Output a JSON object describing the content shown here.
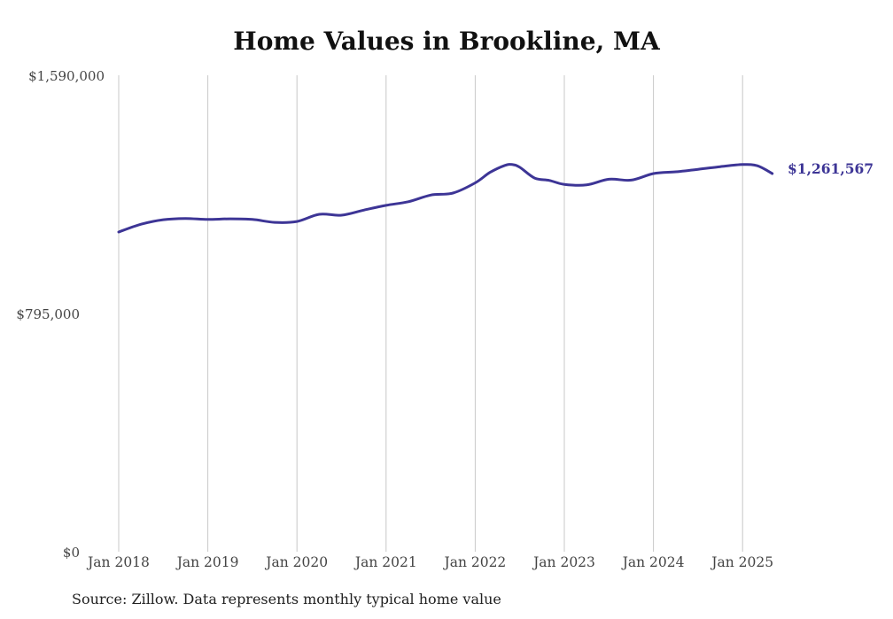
{
  "title": "Home Values in Brookline, MA",
  "source": "Source: Zillow. Data represents monthly typical home value",
  "chart_data": {
    "type": "line",
    "title": "Home Values in Brookline, MA",
    "xlabel": "",
    "ylabel": "",
    "ylim": [
      0,
      1590000
    ],
    "y_ticks": [
      "$0",
      "$795,000",
      "$1,590,000"
    ],
    "y_tick_values": [
      0,
      795000,
      1590000
    ],
    "x_ticks": [
      "Jan 2018",
      "Jan 2019",
      "Jan 2020",
      "Jan 2021",
      "Jan 2022",
      "Jan 2023",
      "Jan 2024",
      "Jan 2025"
    ],
    "grid": "vertical",
    "line_color": "#3d3596",
    "end_label": "$1,261,567",
    "series": [
      {
        "x": [
          "2018-01",
          "2018-04",
          "2018-07",
          "2018-10",
          "2019-01",
          "2019-04",
          "2019-07",
          "2019-10",
          "2020-01",
          "2020-04",
          "2020-07",
          "2020-10",
          "2021-01",
          "2021-04",
          "2021-07",
          "2021-10",
          "2022-01",
          "2022-03",
          "2022-05",
          "2022-06",
          "2022-07",
          "2022-09",
          "2022-11",
          "2023-01",
          "2023-04",
          "2023-07",
          "2023-10",
          "2024-01",
          "2024-04",
          "2024-07",
          "2024-10",
          "2025-01",
          "2025-03",
          "2025-05"
        ],
        "values": [
          1067000,
          1093000,
          1108000,
          1112000,
          1109000,
          1111000,
          1109000,
          1099000,
          1102000,
          1126000,
          1123000,
          1140000,
          1156000,
          1168000,
          1190000,
          1197000,
          1231000,
          1266000,
          1289000,
          1292000,
          1283000,
          1247000,
          1239000,
          1226000,
          1224000,
          1243000,
          1240000,
          1262000,
          1268000,
          1276000,
          1285000,
          1292000,
          1288000,
          1262000
        ]
      }
    ]
  }
}
